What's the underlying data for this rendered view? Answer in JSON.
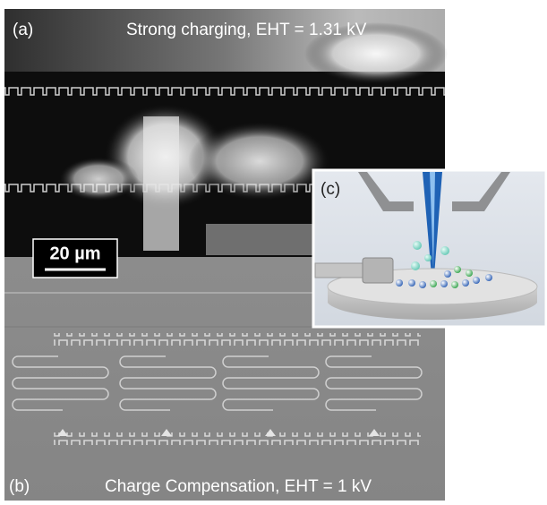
{
  "panels": {
    "a": {
      "label": "(a)",
      "caption": "Strong charging, EHT = 1.31 kV"
    },
    "b": {
      "label": "(b)",
      "caption": "Charge Compensation, EHT = 1 kV"
    },
    "c": {
      "label": "(c)"
    }
  },
  "scale_bar": {
    "label": "20 µm"
  }
}
